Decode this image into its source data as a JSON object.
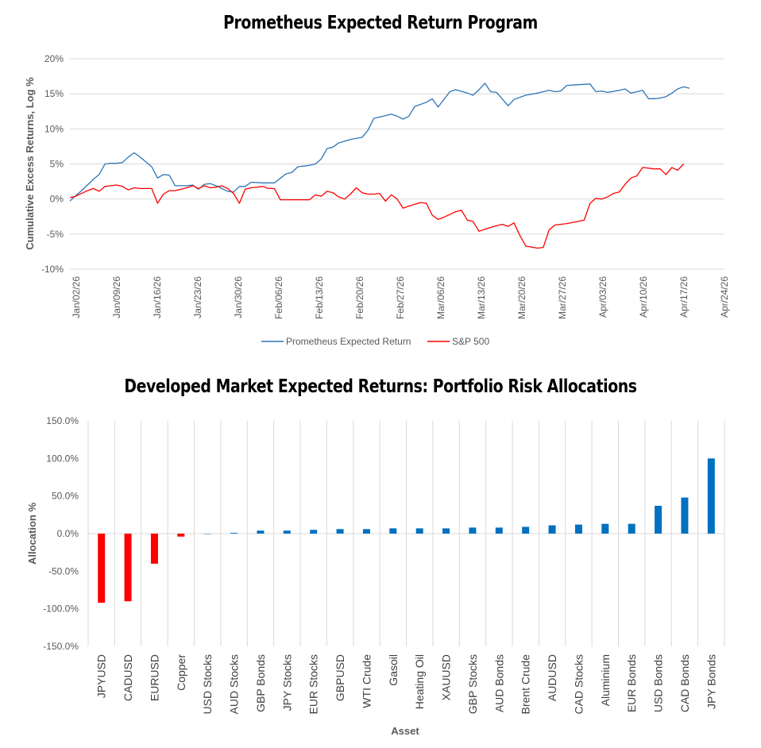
{
  "chart_data": [
    {
      "type": "line",
      "title": "Prometheus Expected Return Program",
      "xlabel": "",
      "ylabel": "Cumulative Excess Returns, Log %",
      "ylim": [
        -10,
        20
      ],
      "yticks": [
        -10,
        -5,
        0,
        5,
        10,
        15,
        20
      ],
      "ytick_labels": [
        "-10%",
        "-5%",
        "0%",
        "5%",
        "10%",
        "15%",
        "20%"
      ],
      "x_tick_labels": [
        "Jan/02/26",
        "Jan/09/26",
        "Jan/16/26",
        "Jan/23/26",
        "Jan/30/26",
        "Feb/06/26",
        "Feb/13/26",
        "Feb/20/26",
        "Feb/27/26",
        "Mar/06/26",
        "Mar/13/26",
        "Mar/20/26",
        "Mar/27/26",
        "Apr/03/26",
        "Apr/10/26",
        "Apr/17/26",
        "Apr/24/26"
      ],
      "x_days_start": 0,
      "x_days_end": 112,
      "legend_position": "bottom",
      "series": [
        {
          "name": "Prometheus Expected Return",
          "color": "#2E75B6",
          "points": [
            [
              0,
              -0.3
            ],
            [
              1,
              0.5
            ],
            [
              2,
              1.2
            ],
            [
              3,
              2
            ],
            [
              4,
              2.8
            ],
            [
              5,
              3.5
            ],
            [
              6,
              5
            ],
            [
              7,
              5.1
            ],
            [
              8,
              5.1
            ],
            [
              9,
              5.2
            ],
            [
              10,
              6
            ],
            [
              11,
              6.6
            ],
            [
              12,
              6
            ],
            [
              13,
              5.3
            ],
            [
              14,
              4.6
            ],
            [
              15,
              3
            ],
            [
              16,
              3.5
            ],
            [
              17,
              3.4
            ],
            [
              18,
              1.9
            ],
            [
              20,
              1.9
            ],
            [
              21,
              2
            ],
            [
              22,
              1.4
            ],
            [
              23,
              2.1
            ],
            [
              24,
              2.2
            ],
            [
              25,
              1.9
            ],
            [
              26,
              1.5
            ],
            [
              27,
              1.1
            ],
            [
              28,
              1
            ],
            [
              29,
              1.8
            ],
            [
              30,
              1.8
            ],
            [
              31,
              2.4
            ],
            [
              33,
              2.3
            ],
            [
              35,
              2.3
            ],
            [
              37,
              3.6
            ],
            [
              38,
              3.8
            ],
            [
              39,
              4.6
            ],
            [
              41,
              4.8
            ],
            [
              42,
              5
            ],
            [
              43,
              5.7
            ],
            [
              44,
              7.2
            ],
            [
              45,
              7.4
            ],
            [
              46,
              8
            ],
            [
              48,
              8.5
            ],
            [
              50,
              8.8
            ],
            [
              51,
              9.8
            ],
            [
              52,
              11.5
            ],
            [
              54,
              11.9
            ],
            [
              55,
              12.1
            ],
            [
              56,
              11.8
            ],
            [
              57,
              11.4
            ],
            [
              58,
              11.8
            ],
            [
              59,
              13.2
            ],
            [
              61,
              13.8
            ],
            [
              62,
              14.3
            ],
            [
              63,
              13.1
            ],
            [
              65,
              15.3
            ],
            [
              66,
              15.6
            ],
            [
              68,
              15.1
            ],
            [
              69,
              14.8
            ],
            [
              70,
              15.6
            ],
            [
              71,
              16.5
            ],
            [
              72,
              15.3
            ],
            [
              73,
              15.2
            ],
            [
              75,
              13.3
            ],
            [
              76,
              14.2
            ],
            [
              78,
              14.8
            ],
            [
              80,
              15.1
            ],
            [
              81,
              15.3
            ],
            [
              82,
              15.5
            ],
            [
              83,
              15.3
            ],
            [
              84,
              15.4
            ],
            [
              85,
              16.2
            ],
            [
              87,
              16.3
            ],
            [
              89,
              16.4
            ],
            [
              90,
              15.3
            ],
            [
              91,
              15.4
            ],
            [
              92,
              15.2
            ],
            [
              94,
              15.5
            ],
            [
              95,
              15.7
            ],
            [
              96,
              15.1
            ],
            [
              98,
              15.5
            ],
            [
              99,
              14.3
            ],
            [
              100,
              14.3
            ],
            [
              101,
              14.4
            ],
            [
              102,
              14.6
            ],
            [
              103,
              15.1
            ],
            [
              104,
              15.7
            ],
            [
              105,
              16
            ],
            [
              106,
              15.8
            ]
          ]
        },
        {
          "name": "S&P 500",
          "color": "#FF0000",
          "points": [
            [
              0,
              0.2
            ],
            [
              1,
              0.4
            ],
            [
              2,
              0.8
            ],
            [
              3,
              1.2
            ],
            [
              4,
              1.5
            ],
            [
              5,
              1.1
            ],
            [
              6,
              1.8
            ],
            [
              7,
              1.9
            ],
            [
              8,
              2
            ],
            [
              9,
              1.8
            ],
            [
              10,
              1.3
            ],
            [
              11,
              1.6
            ],
            [
              12,
              1.5
            ],
            [
              13,
              1.5
            ],
            [
              14,
              1.5
            ],
            [
              15,
              -0.6
            ],
            [
              16,
              0.7
            ],
            [
              17,
              1.2
            ],
            [
              18,
              1.2
            ],
            [
              20,
              1.6
            ],
            [
              21,
              1.9
            ],
            [
              22,
              1.5
            ],
            [
              23,
              1.9
            ],
            [
              24,
              1.6
            ],
            [
              25,
              1.7
            ],
            [
              26,
              1.9
            ],
            [
              27,
              1.5
            ],
            [
              28,
              0.8
            ],
            [
              29,
              -0.6
            ],
            [
              30,
              1.4
            ],
            [
              31,
              1.6
            ],
            [
              33,
              1.8
            ],
            [
              34,
              1.5
            ],
            [
              35,
              1.5
            ],
            [
              36,
              -0.1
            ],
            [
              37,
              -0.1
            ],
            [
              38,
              -0.1
            ],
            [
              39,
              -0.1
            ],
            [
              40,
              -0.1
            ],
            [
              41,
              -0.1
            ],
            [
              42,
              0.6
            ],
            [
              43,
              0.4
            ],
            [
              44,
              1.1
            ],
            [
              45,
              0.9
            ],
            [
              46,
              0.3
            ],
            [
              47,
              0
            ],
            [
              48,
              0.7
            ],
            [
              49,
              1.6
            ],
            [
              50,
              0.9
            ],
            [
              51,
              0.7
            ],
            [
              52,
              0.7
            ],
            [
              53,
              0.8
            ],
            [
              54,
              -0.3
            ],
            [
              55,
              0.6
            ],
            [
              56,
              0
            ],
            [
              57,
              -1.3
            ],
            [
              58,
              -1
            ],
            [
              60,
              -0.5
            ],
            [
              61,
              -0.6
            ],
            [
              62,
              -2.3
            ],
            [
              63,
              -2.9
            ],
            [
              64,
              -2.6
            ],
            [
              65,
              -2.2
            ],
            [
              66,
              -1.8
            ],
            [
              67,
              -1.6
            ],
            [
              68,
              -3
            ],
            [
              69,
              -3.2
            ],
            [
              70,
              -4.6
            ],
            [
              71,
              -4.3
            ],
            [
              73,
              -3.8
            ],
            [
              74,
              -3.6
            ],
            [
              75,
              -3.9
            ],
            [
              76,
              -3.4
            ],
            [
              77,
              -5.2
            ],
            [
              78,
              -6.7
            ],
            [
              80,
              -7
            ],
            [
              81,
              -6.9
            ],
            [
              82,
              -4.4
            ],
            [
              83,
              -3.7
            ],
            [
              85,
              -3.5
            ],
            [
              88,
              -3
            ],
            [
              89,
              -0.6
            ],
            [
              90,
              0.1
            ],
            [
              91,
              0
            ],
            [
              92,
              0.3
            ],
            [
              93,
              0.8
            ],
            [
              94,
              1
            ],
            [
              95,
              2.1
            ],
            [
              96,
              3
            ],
            [
              97,
              3.3
            ],
            [
              98,
              4.5
            ],
            [
              100,
              4.3
            ],
            [
              101,
              4.3
            ],
            [
              102,
              3.5
            ],
            [
              103,
              4.5
            ],
            [
              104,
              4.1
            ],
            [
              105,
              5
            ]
          ]
        }
      ]
    },
    {
      "type": "bar",
      "title": "Developed Market Expected Returns: Portfolio Risk Allocations",
      "xlabel": "Asset",
      "ylabel": "Allocation %",
      "ylim": [
        -150,
        150
      ],
      "yticks": [
        -150,
        -100,
        -50,
        0,
        50,
        100,
        150
      ],
      "ytick_labels": [
        "-150.0%",
        "-100.0%",
        "-50.0%",
        "0.0%",
        "50.0%",
        "100.0%",
        "150.0%"
      ],
      "negative_color": "#FF0000",
      "positive_color": "#0070C0",
      "categories": [
        "JPYUSD",
        "CADUSD",
        "EURUSD",
        "Copper",
        "USD Stocks",
        "AUD Stocks",
        "GBP Bonds",
        "JPY Stocks",
        "EUR Stocks",
        "GBPUSD",
        "WTI Crude",
        "Gasoil",
        "Heating Oil",
        "XAUUSD",
        "GBP Stocks",
        "AUD Bonds",
        "Brent Crude",
        "AUDUSD",
        "CAD Stocks",
        "Aluminium",
        "EUR Bonds",
        "USD Bonds",
        "CAD Bonds",
        "JPY Bonds"
      ],
      "values": [
        -92,
        -90,
        -40,
        -4,
        0,
        1,
        4,
        4,
        5,
        6,
        6,
        7,
        7,
        7,
        8,
        8,
        9,
        11,
        12,
        13,
        13,
        37,
        48,
        100
      ]
    }
  ]
}
